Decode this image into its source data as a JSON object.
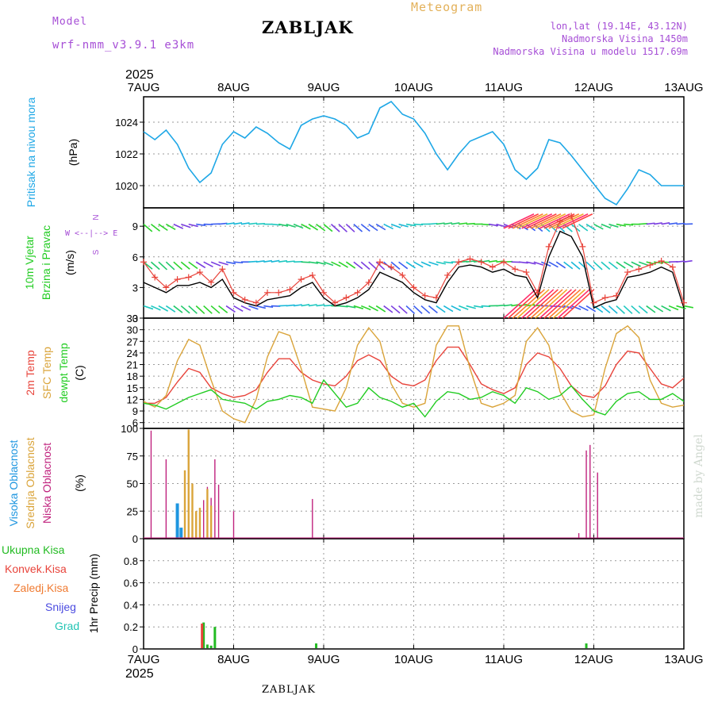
{
  "header": {
    "model_label": "Model",
    "model_name": "wrf-nmm_v3.9.1 e3km",
    "title": "ZABLJAK",
    "meteogram_label": "Meteogram",
    "coords": "lon,lat (19.14E, 43.12N)",
    "elevation": "Nadmorska Visina 1450m",
    "model_elevation": "Nadmorska Visina u modelu 1517.69m",
    "footer": "ZABLJAK",
    "watermark": "made by Angel"
  },
  "colors": {
    "pressure": "#1ea7e6",
    "wind_speed": "#000000",
    "gust": "#e8433a",
    "temp2m": "#e8433a",
    "sfc_temp": "#daa43a",
    "dewpoint": "#22cc22",
    "cloud_high": "#1e96e0",
    "cloud_mid": "#daa43a",
    "cloud_low": "#c0237e",
    "precip_total": "#22bb22",
    "precip_conv": "#e8433a",
    "text_purple": "#a64ed6"
  },
  "chart_data": [
    {
      "id": "pressure",
      "type": "line",
      "ylabel": "(hPa)",
      "side_labels": [
        "Pritisak na nivou mora"
      ],
      "ylim": [
        1018.6,
        1025.6
      ],
      "yticks": [
        1020,
        1022,
        1024
      ],
      "x_dates": [
        "7AUG",
        "8AUG",
        "9AUG",
        "10AUG",
        "11AUG",
        "12AUG",
        "13AUG"
      ],
      "x_year": "2025",
      "x_hours": [
        0,
        3,
        6,
        9,
        12,
        15,
        18,
        21,
        24,
        27,
        30,
        33,
        36,
        39,
        42,
        45,
        48,
        51,
        54,
        57,
        60,
        63,
        66,
        69,
        72,
        75,
        78,
        81,
        84,
        87,
        90,
        93,
        96,
        99,
        102,
        105,
        108,
        111,
        114,
        117,
        120,
        123,
        126,
        129,
        132,
        135,
        138,
        141,
        144
      ],
      "series": [
        {
          "name": "Pressure",
          "values": [
            1023.4,
            1022.9,
            1023.5,
            1022.6,
            1021.1,
            1020.2,
            1020.8,
            1022.6,
            1023.4,
            1023.0,
            1023.7,
            1023.3,
            1022.7,
            1022.3,
            1023.8,
            1024.2,
            1024.4,
            1024.2,
            1023.8,
            1023.0,
            1023.3,
            1024.9,
            1025.3,
            1024.5,
            1024.2,
            1023.3,
            1022.0,
            1021.0,
            1022.0,
            1022.8,
            1023.1,
            1023.4,
            1022.6,
            1021.0,
            1020.4,
            1021.1,
            1022.9,
            1022.7,
            1021.9,
            1021.0,
            1020.1,
            1019.2,
            1018.8,
            1019.8,
            1021.0,
            1020.7,
            1020.0,
            1020.0,
            1020.0
          ]
        }
      ]
    },
    {
      "id": "wind",
      "type": "line",
      "ylabel": "(m/s)",
      "side_labels": [
        "10m Vjetar",
        "Brzina i Pravac"
      ],
      "compass": [
        "N",
        "W <--|--> E",
        "S"
      ],
      "ylim": [
        0,
        10.8
      ],
      "yticks": [
        0,
        3,
        6,
        9
      ],
      "x_hours": [
        0,
        3,
        6,
        9,
        12,
        15,
        18,
        21,
        24,
        27,
        30,
        33,
        36,
        39,
        42,
        45,
        48,
        51,
        54,
        57,
        60,
        63,
        66,
        69,
        72,
        75,
        78,
        81,
        84,
        87,
        90,
        93,
        96,
        99,
        102,
        105,
        108,
        111,
        114,
        117,
        120,
        123,
        126,
        129,
        132,
        135,
        138,
        141,
        144
      ],
      "barb_levels": [
        1.2,
        5.5,
        9.2
      ],
      "series": [
        {
          "name": "Wind speed",
          "values": [
            3.5,
            3.0,
            2.5,
            3.2,
            3.2,
            3.5,
            3.0,
            3.8,
            2.0,
            1.5,
            1.2,
            1.8,
            2.0,
            2.2,
            3.0,
            3.5,
            2.0,
            1.2,
            1.5,
            2.0,
            2.8,
            4.5,
            4.0,
            3.5,
            2.5,
            1.8,
            1.5,
            3.5,
            5.0,
            5.2,
            5.0,
            4.5,
            4.8,
            4.2,
            4.0,
            2.0,
            6.0,
            8.5,
            8.0,
            6.0,
            1.0,
            1.5,
            1.8,
            4.0,
            4.2,
            4.5,
            5.0,
            4.5,
            1.0
          ]
        },
        {
          "name": "Gust",
          "values": [
            5.5,
            4.0,
            3.0,
            3.8,
            4.0,
            4.5,
            3.5,
            4.8,
            2.5,
            1.8,
            1.5,
            2.5,
            2.5,
            2.8,
            3.8,
            4.2,
            2.5,
            1.5,
            2.0,
            2.5,
            3.5,
            5.5,
            5.0,
            4.2,
            3.0,
            2.2,
            2.0,
            4.2,
            5.5,
            5.8,
            5.5,
            5.0,
            5.5,
            4.8,
            4.5,
            2.5,
            7.0,
            9.5,
            10.0,
            7.0,
            1.5,
            2.0,
            2.2,
            4.5,
            4.8,
            5.2,
            5.6,
            5.0,
            1.5
          ]
        }
      ]
    },
    {
      "id": "temperature",
      "type": "line",
      "ylabel": "(C)",
      "side_labels": [
        "2m Temp",
        "SFC Temp",
        "dewpt Temp"
      ],
      "ylim": [
        4.5,
        33
      ],
      "yticks": [
        6,
        9,
        12,
        15,
        18,
        21,
        24,
        27,
        30,
        33
      ],
      "x_hours": [
        0,
        3,
        6,
        9,
        12,
        15,
        18,
        21,
        24,
        27,
        30,
        33,
        36,
        39,
        42,
        45,
        48,
        51,
        54,
        57,
        60,
        63,
        66,
        69,
        72,
        75,
        78,
        81,
        84,
        87,
        90,
        93,
        96,
        99,
        102,
        105,
        108,
        111,
        114,
        117,
        120,
        123,
        126,
        129,
        132,
        135,
        138,
        141,
        144
      ],
      "series": [
        {
          "name": "2m Temp",
          "values": [
            11,
            11,
            12.5,
            16.5,
            20,
            19,
            15,
            13.5,
            12.5,
            13,
            14.5,
            19,
            22.5,
            22.5,
            19,
            17,
            16,
            15.5,
            18,
            22,
            23.5,
            22,
            18,
            16,
            15.5,
            17,
            22,
            25.5,
            25.5,
            21,
            16,
            14.5,
            13.5,
            15,
            21,
            24,
            23,
            20,
            15.5,
            13,
            12.5,
            15.5,
            21,
            24.5,
            24,
            20,
            16,
            15,
            17.5
          ]
        },
        {
          "name": "SFC Temp",
          "values": [
            11.5,
            10,
            13,
            22,
            27.5,
            26,
            17,
            9,
            7,
            6,
            12,
            23,
            29.5,
            28.5,
            20,
            10,
            9.5,
            9,
            15,
            26,
            30.5,
            27,
            16,
            11,
            10,
            11,
            26,
            31,
            31,
            20,
            11,
            10,
            11,
            13,
            27,
            30.5,
            26,
            14,
            9,
            7.5,
            8,
            20,
            29,
            31,
            28,
            17,
            11,
            10,
            10.5
          ]
        },
        {
          "name": "dewpt Temp",
          "values": [
            11,
            10.5,
            9.5,
            11,
            12.5,
            13.5,
            14.5,
            12,
            11.5,
            11,
            9.5,
            11.5,
            12,
            13,
            12.5,
            11,
            17,
            13.5,
            10,
            11,
            15,
            12.5,
            11.5,
            10,
            11,
            7.5,
            11.5,
            14,
            13.5,
            12,
            12.5,
            14,
            13,
            11,
            15,
            14,
            12,
            13,
            15.5,
            12,
            9,
            8,
            11.5,
            13.5,
            14,
            12,
            12,
            13.5,
            11.5
          ]
        }
      ]
    },
    {
      "id": "clouds",
      "type": "bar",
      "ylabel": "(%)",
      "side_labels": [
        "Visoka Oblacnost",
        "Srednja Oblacnost",
        "Niska Oblacnost"
      ],
      "ylim": [
        0,
        100
      ],
      "yticks": [
        0,
        25,
        50,
        75,
        100
      ],
      "series": [
        {
          "name": "Niska Oblacnost",
          "x_hours": [
            2,
            6,
            13,
            16,
            17,
            18,
            19,
            20,
            24,
            45,
            116,
            118,
            119,
            121
          ],
          "values": [
            98,
            72,
            12,
            35,
            47,
            37,
            72,
            49,
            25,
            36,
            5,
            80,
            85,
            60
          ]
        },
        {
          "name": "Srednja Oblacnost",
          "x_hours": [
            11,
            12,
            13,
            14,
            15,
            17,
            18
          ],
          "values": [
            62,
            99,
            50,
            25,
            28,
            45,
            30
          ]
        },
        {
          "name": "Visoka Oblacnost",
          "x_hours": [
            9,
            10
          ],
          "values": [
            32,
            10
          ]
        }
      ]
    },
    {
      "id": "precip",
      "type": "bar",
      "ylabel": "1hr Precip (mm)",
      "side_labels": [
        "Ukupna Kisa",
        "Konvek.Kisa",
        "Zaledj.Kisa",
        "Snijeg",
        "Grad"
      ],
      "ylim": [
        0,
        1.0
      ],
      "yticks": [
        0,
        0.2,
        0.4,
        0.6,
        0.8
      ],
      "series": [
        {
          "name": "Ukupna Kisa",
          "x_hours": [
            16,
            17,
            18,
            19,
            46,
            118
          ],
          "values": [
            0.24,
            0.04,
            0.03,
            0.2,
            0.05,
            0.05
          ]
        },
        {
          "name": "Konvek.Kisa",
          "x_hours": [
            16
          ],
          "values": [
            0.23
          ]
        }
      ]
    }
  ]
}
